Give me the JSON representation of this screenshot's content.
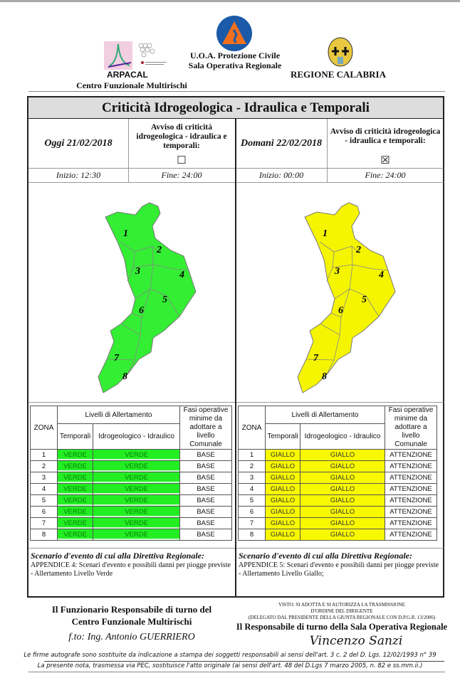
{
  "header": {
    "arpacal": "ARPACAL",
    "centro": "Centro Funzionale Multirischi",
    "uoa": "U.O.A. Protezione Civile",
    "sala": "Sala Operativa Regionale",
    "regione": "REGIONE CALABRIA"
  },
  "title": "Criticità Idrogeologica - Idraulica e Temporali",
  "today": {
    "label": "Oggi 21/02/2018",
    "avviso": "Avviso di criticità idrogeologica - idraulica e temporali:",
    "checkbox": "☐",
    "inizio": "Inizio: 12:30",
    "fine": "Fine: 24:00",
    "map_color": "#33ee33"
  },
  "tomorrow": {
    "label": "Domani 22/02/2018",
    "avviso": "Avviso di criticità idrogeologica - idraulica e temporali:",
    "checkbox": "☒",
    "inizio": "Inizio: 00:00",
    "fine": "Fine: 24:00",
    "map_color": "#f5f500"
  },
  "zones": [
    "1",
    "2",
    "3",
    "4",
    "5",
    "6",
    "7",
    "8"
  ],
  "table_headers": {
    "zona": "ZONA",
    "livelli": "Livelli di Allertamento",
    "temporali": "Temporali",
    "idro": "Idrogeologico - Idraulico",
    "fasi": "Fasi operative minime da adottare a livello Comunale"
  },
  "today_table": {
    "temporali": "VERDE",
    "idro": "VERDE",
    "fase": "BASE"
  },
  "tomorrow_table": {
    "temporali": "GIALLO",
    "idro": "GIALLO",
    "fase": "ATTENZIONE"
  },
  "scenario": {
    "heading": "Scenario d'evento di cui alla Direttiva Regionale:",
    "today": "APPENDICE 4: Scenari d'evento e possibili danni per piogge previste - Allertamento Livello Verde",
    "tomorrow": "APPENDICE 5: Scenari d'evento e possibili danni per piogge previste - Allertamento Livello Giallo;"
  },
  "footer": {
    "funz1": "Il Funzionario Responsabile di turno del",
    "funz2": "Centro Funzionale Multirischi",
    "fto": "f.to: Ing. Antonio GUERRIERO",
    "visto1": "VISTO: SI ADOTTA E SI AUTORIZZA LA TRASMISSIONE",
    "visto2": "D'ORDINE DEL DIRIGENTE",
    "visto3": "(DELEGATO DAL PRESIDENTE DELLA GIUNTA REGIONALE CON D.P.G.R. 13/2006)",
    "resp": "Il Responsabile di turno della Sala Operativa Regionale",
    "signature": "Vincenzo Sanzi",
    "note1": "Le firme autografe sono sostituite da indicazione a stampa dei soggetti responsabili ai sensi dell'art. 3 c. 2 del D. Lgs. 12/02/1993 n° 39",
    "note2": "La presente nota, trasmessa via PEC, sostituisce l'atto originale (ai sensi dell'art. 48 del D.Lgs 7 marzo 2005, n. 82 e ss.mm.ii.)"
  }
}
